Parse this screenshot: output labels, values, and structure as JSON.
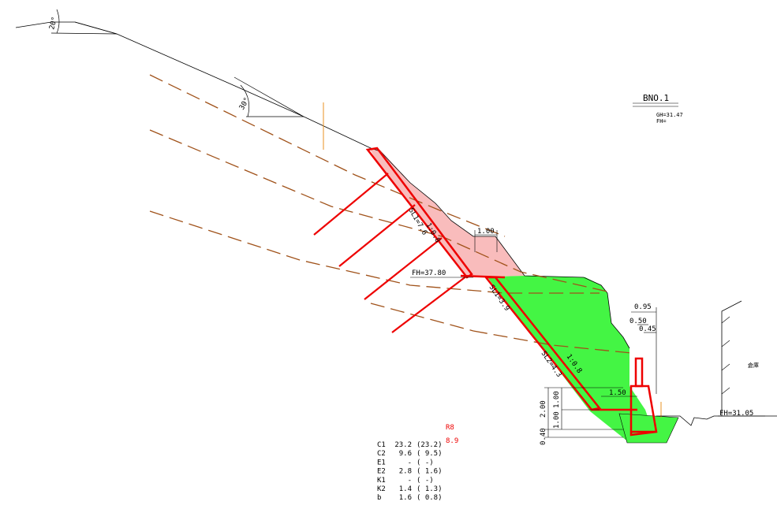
{
  "angles": [
    "20°",
    "30°"
  ],
  "station": {
    "name": "BNO.1",
    "gh": "GH=31.47",
    "fh": "FH="
  },
  "upper_slope": {
    "length": "SL1=7.6",
    "gradient": "1:0.8",
    "berm": "1.00",
    "fh": "FH=37.80"
  },
  "lower_slope": {
    "length1": "SL1=3.9",
    "length2": "SL2=4.3",
    "gradient": "1:0.8"
  },
  "wall": {
    "top_width": "0.95",
    "w1": "0.50",
    "w2": "0.45",
    "base": "1.50",
    "h_total": "2.00",
    "h1": "1.00",
    "h2": "1.00",
    "footing": "0.40"
  },
  "road": {
    "fh": "FH=31.05",
    "building": "倉庫"
  },
  "rank": {
    "code": "R8",
    "score": "8.9"
  },
  "scores": [
    {
      "name": "C1",
      "value": "23.2",
      "alt": "(23.2)"
    },
    {
      "name": "C2",
      "value": "9.6",
      "alt": "( 9.5)"
    },
    {
      "name": "E1",
      "value": "-",
      "alt": "( -)"
    },
    {
      "name": "E2",
      "value": "2.8",
      "alt": "( 1.6)"
    },
    {
      "name": "K1",
      "value": "-",
      "alt": "( -)"
    },
    {
      "name": "K2",
      "value": "1.4",
      "alt": "( 1.3)"
    },
    {
      "name": "b",
      "value": "1.6",
      "alt": "( 0.8)"
    }
  ]
}
